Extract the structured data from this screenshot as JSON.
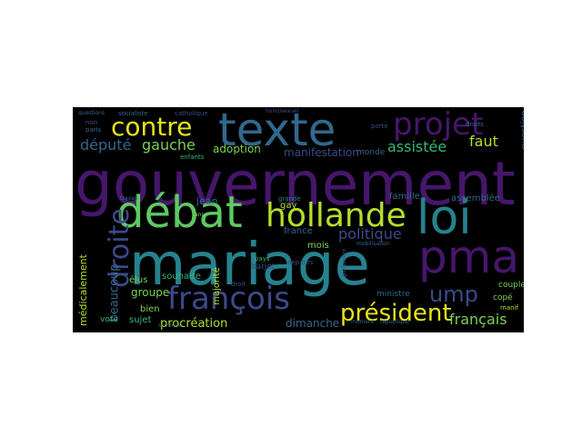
{
  "palette": {
    "background": "#000000",
    "purple": "#46166b",
    "indigo": "#3b4a8a",
    "blue": "#31688e",
    "teal": "#26828e",
    "green": "#35b779",
    "lime": "#7ad151",
    "yellow": "#e7e419"
  },
  "words": [
    {
      "text": "gouvernement",
      "color": "#46166b"
    },
    {
      "text": "mariage",
      "color": "#26828e"
    },
    {
      "text": "loi",
      "color": "#26828e"
    },
    {
      "text": "pma",
      "color": "#46166b"
    },
    {
      "text": "texte",
      "color": "#31688e"
    },
    {
      "text": "débat",
      "color": "#5ec962"
    },
    {
      "text": "hollande",
      "color": "#b5de2b"
    },
    {
      "text": "projet",
      "color": "#46166b"
    },
    {
      "text": "contre",
      "color": "#e7e419"
    },
    {
      "text": "françois",
      "color": "#3b4a8a"
    },
    {
      "text": "droite",
      "color": "#3b4a8a"
    },
    {
      "text": "président",
      "color": "#e7e419"
    },
    {
      "text": "ump",
      "color": "#3b4a8a"
    },
    {
      "text": "député",
      "color": "#31688e"
    },
    {
      "text": "gauche",
      "color": "#7ad151"
    },
    {
      "text": "assistée",
      "color": "#35b779"
    },
    {
      "text": "faut",
      "color": "#b5de2b"
    },
    {
      "text": "politique",
      "color": "#3b4a8a"
    },
    {
      "text": "adoption",
      "color": "#7ad151"
    },
    {
      "text": "manifestation",
      "color": "#3b4a8a"
    },
    {
      "text": "français",
      "color": "#7ad151"
    },
    {
      "text": "procréation",
      "color": "#b5de2b"
    },
    {
      "text": "médicalement",
      "color": "#b5de2b"
    },
    {
      "text": "beaucoup",
      "color": "#31688e"
    },
    {
      "text": "groupe",
      "color": "#7ad151"
    },
    {
      "text": "sujet",
      "color": "#35b779"
    },
    {
      "text": "bien",
      "color": "#7ad151"
    },
    {
      "text": "vote",
      "color": "#35b779"
    },
    {
      "text": "dimanche",
      "color": "#31688e"
    },
    {
      "text": "souhaite",
      "color": "#35b779"
    },
    {
      "text": "élus",
      "color": "#7ad151"
    },
    {
      "text": "jean",
      "color": "#31688e"
    },
    {
      "text": "majorité",
      "color": "#b5de2b"
    },
    {
      "text": "barjot",
      "color": "#3b4a8a"
    },
    {
      "text": "france",
      "color": "#31688e"
    },
    {
      "text": "mois",
      "color": "#7ad151"
    },
    {
      "text": "gay",
      "color": "#b5de2b"
    },
    {
      "text": "famille",
      "color": "#31688e"
    },
    {
      "text": "assemblée",
      "color": "#31688e"
    },
    {
      "text": "monde",
      "color": "#31688e"
    },
    {
      "text": "ministre",
      "color": "#31688e"
    },
    {
      "text": "copé",
      "color": "#7ad151"
    },
    {
      "text": "couples",
      "color": "#7ad151"
    },
    {
      "text": "question",
      "color": "#31688e"
    },
    {
      "text": "socialiste",
      "color": "#31688e"
    },
    {
      "text": "catholique",
      "color": "#3b4a8a"
    },
    {
      "text": "questions",
      "color": "#31688e"
    },
    {
      "text": "non",
      "color": "#3b4a8a"
    },
    {
      "text": "paris",
      "color": "#31688e"
    },
    {
      "text": "enfants",
      "color": "#35b779"
    },
    {
      "text": "droit",
      "color": "#3b4a8a"
    },
    {
      "text": "grande",
      "color": "#26828e"
    },
    {
      "text": "pays",
      "color": "#35b779"
    },
    {
      "text": "députés",
      "color": "#3b4a8a"
    },
    {
      "text": "manif",
      "color": "#b5de2b"
    },
    {
      "text": "droits",
      "color": "#31688e"
    },
    {
      "text": "porte",
      "color": "#3b4a8a"
    },
    {
      "text": "homosexuel",
      "color": "#3b4a8a"
    },
    {
      "text": "moment",
      "color": "#31688e"
    },
    {
      "text": "république",
      "color": "#31688e"
    },
    {
      "text": "mobilisation",
      "color": "#31688e"
    },
    {
      "text": "parlement",
      "color": "#3b4a8a"
    },
    {
      "text": "ans",
      "color": "#7ad151"
    },
    {
      "text": "sommes",
      "color": "#31688e"
    },
    {
      "text": "travail",
      "color": "#31688e"
    }
  ]
}
